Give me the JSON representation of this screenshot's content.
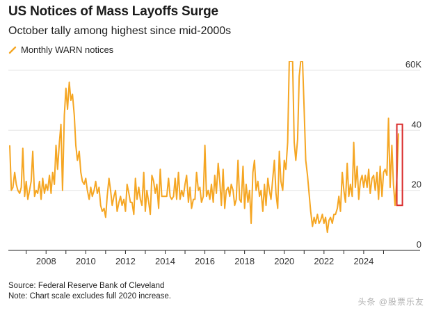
{
  "header": {
    "title": "US Notices of Mass Layoffs Surge",
    "subtitle": "October tally among highest since mid-2000s"
  },
  "footer": {
    "source": "Source: Federal Reserve Bank of Cleveland",
    "note": "Note: Chart scale excludes full 2020 increase."
  },
  "watermark": "头条 @股票乐友",
  "chart_data": {
    "type": "line",
    "title": "US Notices of Mass Layoffs Surge",
    "subtitle": "October tally among highest since mid-2000s",
    "legend": [
      {
        "name": "Monthly WARN notices",
        "color": "#f5a623"
      }
    ],
    "legend_position": "top-left",
    "xlabel": "",
    "ylabel": "",
    "xlim": [
      2006.1,
      2026.0
    ],
    "ylim": [
      0,
      63
    ],
    "y_ticks": [
      0,
      20,
      40,
      60
    ],
    "y_tick_labels": [
      "0",
      "20",
      "40",
      "60K"
    ],
    "y_axis_side": "right",
    "x_ticks": [
      2008,
      2010,
      2012,
      2014,
      2016,
      2018,
      2020,
      2022,
      2024
    ],
    "x_tick_labels": [
      "2008",
      "2010",
      "2012",
      "2014",
      "2016",
      "2018",
      "2020",
      "2022",
      "2024"
    ],
    "grid": "horizontal",
    "clipped_note": "Chart scale excludes full 2020 increase.",
    "series": [
      {
        "name": "Monthly WARN notices",
        "color": "#f5a623",
        "points": [
          [
            2006.17,
            35
          ],
          [
            2006.25,
            20
          ],
          [
            2006.33,
            21
          ],
          [
            2006.42,
            26
          ],
          [
            2006.5,
            22
          ],
          [
            2006.58,
            20
          ],
          [
            2006.67,
            19
          ],
          [
            2006.75,
            21
          ],
          [
            2006.83,
            34
          ],
          [
            2006.92,
            18
          ],
          [
            2007.0,
            23
          ],
          [
            2007.08,
            17
          ],
          [
            2007.17,
            20
          ],
          [
            2007.25,
            23
          ],
          [
            2007.33,
            33
          ],
          [
            2007.42,
            18
          ],
          [
            2007.5,
            20
          ],
          [
            2007.58,
            19
          ],
          [
            2007.67,
            23
          ],
          [
            2007.75,
            17
          ],
          [
            2007.83,
            24
          ],
          [
            2007.92,
            19
          ],
          [
            2008.0,
            22
          ],
          [
            2008.08,
            20
          ],
          [
            2008.17,
            25
          ],
          [
            2008.25,
            19
          ],
          [
            2008.33,
            26
          ],
          [
            2008.42,
            22
          ],
          [
            2008.5,
            35
          ],
          [
            2008.58,
            27
          ],
          [
            2008.67,
            36
          ],
          [
            2008.75,
            42
          ],
          [
            2008.83,
            20
          ],
          [
            2008.92,
            45
          ],
          [
            2009.0,
            54
          ],
          [
            2009.08,
            47
          ],
          [
            2009.17,
            56
          ],
          [
            2009.25,
            50
          ],
          [
            2009.33,
            52
          ],
          [
            2009.42,
            45
          ],
          [
            2009.5,
            35
          ],
          [
            2009.58,
            30
          ],
          [
            2009.67,
            33
          ],
          [
            2009.75,
            26
          ],
          [
            2009.83,
            23
          ],
          [
            2009.92,
            22
          ],
          [
            2010.0,
            24
          ],
          [
            2010.08,
            20
          ],
          [
            2010.17,
            17
          ],
          [
            2010.25,
            21
          ],
          [
            2010.33,
            18
          ],
          [
            2010.42,
            20
          ],
          [
            2010.5,
            23
          ],
          [
            2010.58,
            19
          ],
          [
            2010.67,
            21
          ],
          [
            2010.75,
            15
          ],
          [
            2010.83,
            13
          ],
          [
            2010.92,
            14
          ],
          [
            2011.0,
            11
          ],
          [
            2011.08,
            18
          ],
          [
            2011.17,
            24
          ],
          [
            2011.25,
            20
          ],
          [
            2011.33,
            15
          ],
          [
            2011.42,
            18
          ],
          [
            2011.5,
            20
          ],
          [
            2011.58,
            13
          ],
          [
            2011.67,
            16
          ],
          [
            2011.75,
            18
          ],
          [
            2011.83,
            15
          ],
          [
            2011.92,
            17
          ],
          [
            2012.0,
            13
          ],
          [
            2012.08,
            22
          ],
          [
            2012.17,
            19
          ],
          [
            2012.25,
            16
          ],
          [
            2012.33,
            16
          ],
          [
            2012.42,
            12
          ],
          [
            2012.5,
            24
          ],
          [
            2012.58,
            17
          ],
          [
            2012.67,
            21
          ],
          [
            2012.75,
            17
          ],
          [
            2012.83,
            15
          ],
          [
            2012.92,
            26
          ],
          [
            2013.0,
            13
          ],
          [
            2013.08,
            20
          ],
          [
            2013.17,
            16
          ],
          [
            2013.25,
            12
          ],
          [
            2013.33,
            25
          ],
          [
            2013.42,
            23
          ],
          [
            2013.5,
            19
          ],
          [
            2013.58,
            22
          ],
          [
            2013.67,
            14
          ],
          [
            2013.75,
            27
          ],
          [
            2013.83,
            18
          ],
          [
            2013.92,
            18
          ],
          [
            2014.0,
            18
          ],
          [
            2014.08,
            18
          ],
          [
            2014.17,
            24
          ],
          [
            2014.25,
            18
          ],
          [
            2014.33,
            17
          ],
          [
            2014.42,
            18
          ],
          [
            2014.5,
            24
          ],
          [
            2014.58,
            17
          ],
          [
            2014.67,
            26
          ],
          [
            2014.75,
            17
          ],
          [
            2014.83,
            20
          ],
          [
            2014.92,
            18
          ],
          [
            2015.0,
            22
          ],
          [
            2015.08,
            25
          ],
          [
            2015.17,
            16
          ],
          [
            2015.25,
            21
          ],
          [
            2015.33,
            14
          ],
          [
            2015.42,
            17
          ],
          [
            2015.5,
            17
          ],
          [
            2015.58,
            26
          ],
          [
            2015.67,
            20
          ],
          [
            2015.75,
            21
          ],
          [
            2015.83,
            16
          ],
          [
            2015.92,
            18
          ],
          [
            2016.0,
            35
          ],
          [
            2016.08,
            18
          ],
          [
            2016.17,
            20
          ],
          [
            2016.25,
            17
          ],
          [
            2016.33,
            22
          ],
          [
            2016.42,
            16
          ],
          [
            2016.5,
            25
          ],
          [
            2016.58,
            19
          ],
          [
            2016.67,
            29
          ],
          [
            2016.75,
            23
          ],
          [
            2016.83,
            15
          ],
          [
            2016.92,
            27
          ],
          [
            2017.0,
            14
          ],
          [
            2017.08,
            20
          ],
          [
            2017.17,
            21
          ],
          [
            2017.25,
            18
          ],
          [
            2017.33,
            22
          ],
          [
            2017.42,
            20
          ],
          [
            2017.5,
            15
          ],
          [
            2017.58,
            17
          ],
          [
            2017.67,
            30
          ],
          [
            2017.75,
            17
          ],
          [
            2017.83,
            16
          ],
          [
            2017.92,
            28
          ],
          [
            2018.0,
            14
          ],
          [
            2018.08,
            22
          ],
          [
            2018.17,
            16
          ],
          [
            2018.25,
            20
          ],
          [
            2018.33,
            9
          ],
          [
            2018.42,
            26
          ],
          [
            2018.5,
            30
          ],
          [
            2018.58,
            20
          ],
          [
            2018.67,
            23
          ],
          [
            2018.75,
            18
          ],
          [
            2018.83,
            20
          ],
          [
            2018.92,
            13
          ],
          [
            2019.0,
            22
          ],
          [
            2019.08,
            15
          ],
          [
            2019.17,
            24
          ],
          [
            2019.25,
            20
          ],
          [
            2019.33,
            17
          ],
          [
            2019.42,
            24
          ],
          [
            2019.5,
            30
          ],
          [
            2019.58,
            19
          ],
          [
            2019.67,
            14
          ],
          [
            2019.75,
            33
          ],
          [
            2019.83,
            23
          ],
          [
            2019.92,
            20
          ],
          [
            2020.0,
            30
          ],
          [
            2020.08,
            27
          ],
          [
            2020.17,
            36
          ],
          [
            2020.25,
            63
          ],
          [
            2020.33,
            63
          ],
          [
            2020.42,
            63
          ],
          [
            2020.5,
            36
          ],
          [
            2020.58,
            30
          ],
          [
            2020.67,
            37
          ],
          [
            2020.75,
            58
          ],
          [
            2020.83,
            63
          ],
          [
            2020.92,
            63
          ],
          [
            2021.0,
            47
          ],
          [
            2021.08,
            30
          ],
          [
            2021.17,
            25
          ],
          [
            2021.25,
            19
          ],
          [
            2021.33,
            13
          ],
          [
            2021.42,
            8
          ],
          [
            2021.5,
            11
          ],
          [
            2021.58,
            9
          ],
          [
            2021.67,
            12
          ],
          [
            2021.75,
            9
          ],
          [
            2021.83,
            10
          ],
          [
            2021.92,
            12
          ],
          [
            2022.0,
            9
          ],
          [
            2022.08,
            11
          ],
          [
            2022.17,
            6
          ],
          [
            2022.25,
            10
          ],
          [
            2022.33,
            11
          ],
          [
            2022.42,
            9
          ],
          [
            2022.5,
            12
          ],
          [
            2022.58,
            12
          ],
          [
            2022.67,
            14
          ],
          [
            2022.75,
            18
          ],
          [
            2022.83,
            13
          ],
          [
            2022.92,
            26
          ],
          [
            2023.0,
            20
          ],
          [
            2023.08,
            16
          ],
          [
            2023.17,
            29
          ],
          [
            2023.25,
            18
          ],
          [
            2023.33,
            22
          ],
          [
            2023.42,
            18
          ],
          [
            2023.5,
            36
          ],
          [
            2023.58,
            21
          ],
          [
            2023.67,
            28
          ],
          [
            2023.75,
            17
          ],
          [
            2023.83,
            23
          ],
          [
            2023.92,
            25
          ],
          [
            2024.0,
            21
          ],
          [
            2024.08,
            25
          ],
          [
            2024.17,
            21
          ],
          [
            2024.25,
            27
          ],
          [
            2024.33,
            19
          ],
          [
            2024.42,
            24
          ],
          [
            2024.5,
            25
          ],
          [
            2024.58,
            20
          ],
          [
            2024.67,
            26
          ],
          [
            2024.75,
            17
          ],
          [
            2024.83,
            28
          ],
          [
            2024.92,
            18
          ],
          [
            2025.0,
            26
          ],
          [
            2025.08,
            27
          ],
          [
            2025.17,
            25
          ],
          [
            2025.25,
            44
          ],
          [
            2025.33,
            21
          ],
          [
            2025.42,
            35
          ],
          [
            2025.5,
            22
          ],
          [
            2025.58,
            15
          ],
          [
            2025.67,
            24
          ],
          [
            2025.75,
            39
          ]
        ]
      }
    ],
    "annotations": [
      {
        "type": "highlight-box",
        "color": "#d92b2b",
        "x_range": [
          2025.67,
          2025.95
        ],
        "y_range": [
          15,
          42
        ]
      }
    ]
  }
}
